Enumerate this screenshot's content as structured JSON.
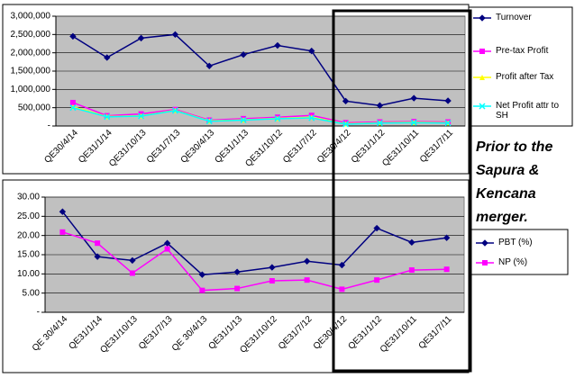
{
  "chart_data": [
    {
      "type": "line",
      "categories": [
        "QE30/4/14",
        "QE31/1/14",
        "QE31/10/13",
        "QE31/7/13",
        "QE30/4/13",
        "QE31/1/13",
        "QE31/10/12",
        "QE31/7/12",
        "QE30/4/12",
        "QE31/1/12",
        "QE31/10/11",
        "QE31/7/11"
      ],
      "ylim": [
        0,
        3000000
      ],
      "yticks": [
        {
          "value": 0,
          "label": "-"
        },
        {
          "value": 500000,
          "label": "500,000"
        },
        {
          "value": 1000000,
          "label": "1,000,000"
        },
        {
          "value": 1500000,
          "label": "1,500,000"
        },
        {
          "value": 2000000,
          "label": "2,000,000"
        },
        {
          "value": 2500000,
          "label": "2,500,000"
        },
        {
          "value": 3000000,
          "label": "3,000,000"
        }
      ],
      "grid": true,
      "legend": "right",
      "series": [
        {
          "name": "Turnover",
          "color": "#000080",
          "marker": "diamond",
          "values": [
            2450000,
            1870000,
            2400000,
            2500000,
            1640000,
            1950000,
            2200000,
            2050000,
            680000,
            560000,
            760000,
            690000
          ]
        },
        {
          "name": "Pre-tax Profit",
          "color": "#ff00ff",
          "marker": "square",
          "values": [
            640000,
            280000,
            330000,
            450000,
            160000,
            200000,
            240000,
            290000,
            90000,
            110000,
            120000,
            110000
          ]
        },
        {
          "name": "Profit after Tax",
          "color": "#ffff00",
          "marker": "triangle",
          "values": [
            520000,
            260000,
            280000,
            430000,
            140000,
            170000,
            210000,
            240000,
            60000,
            90000,
            100000,
            90000
          ]
        },
        {
          "name": "Net Profit attr to SH",
          "color": "#00ffff",
          "marker": "x",
          "values": [
            500000,
            250000,
            270000,
            420000,
            130000,
            160000,
            200000,
            220000,
            50000,
            80000,
            90000,
            80000
          ]
        }
      ],
      "annotation": [
        "Prior to the",
        "Sapura &",
        "Kencana",
        "merger."
      ]
    },
    {
      "type": "line",
      "categories": [
        "QE 30/4/14",
        "QE31/1/14",
        "QE31/10/13",
        "QE31/7/13",
        "QE 30/4/13",
        "QE31/1/13",
        "QE31/10/12",
        "QE31/7/12",
        "QE30/4/12",
        "QE31/1/12",
        "QE31/10/11",
        "QE31/7/11"
      ],
      "ylim": [
        0,
        30
      ],
      "yticks": [
        {
          "value": 0,
          "label": "-"
        },
        {
          "value": 5,
          "label": "5.00"
        },
        {
          "value": 10,
          "label": "10.00"
        },
        {
          "value": 15,
          "label": "15.00"
        },
        {
          "value": 20,
          "label": "20.00"
        },
        {
          "value": 25,
          "label": "25.00"
        },
        {
          "value": 30,
          "label": "30.00"
        }
      ],
      "grid": true,
      "legend": "right",
      "series": [
        {
          "name": "PBT (%)",
          "color": "#000080",
          "marker": "diamond",
          "values": [
            26.2,
            14.5,
            13.5,
            18,
            9.8,
            10.5,
            11.7,
            13.3,
            12.3,
            21.9,
            18.2,
            19.4
          ]
        },
        {
          "name": "NP (%)",
          "color": "#ff00ff",
          "marker": "square",
          "values": [
            20.9,
            18,
            10.2,
            16.5,
            5.7,
            6.2,
            8.2,
            8.4,
            6,
            8.4,
            11,
            11.2
          ]
        }
      ]
    }
  ]
}
